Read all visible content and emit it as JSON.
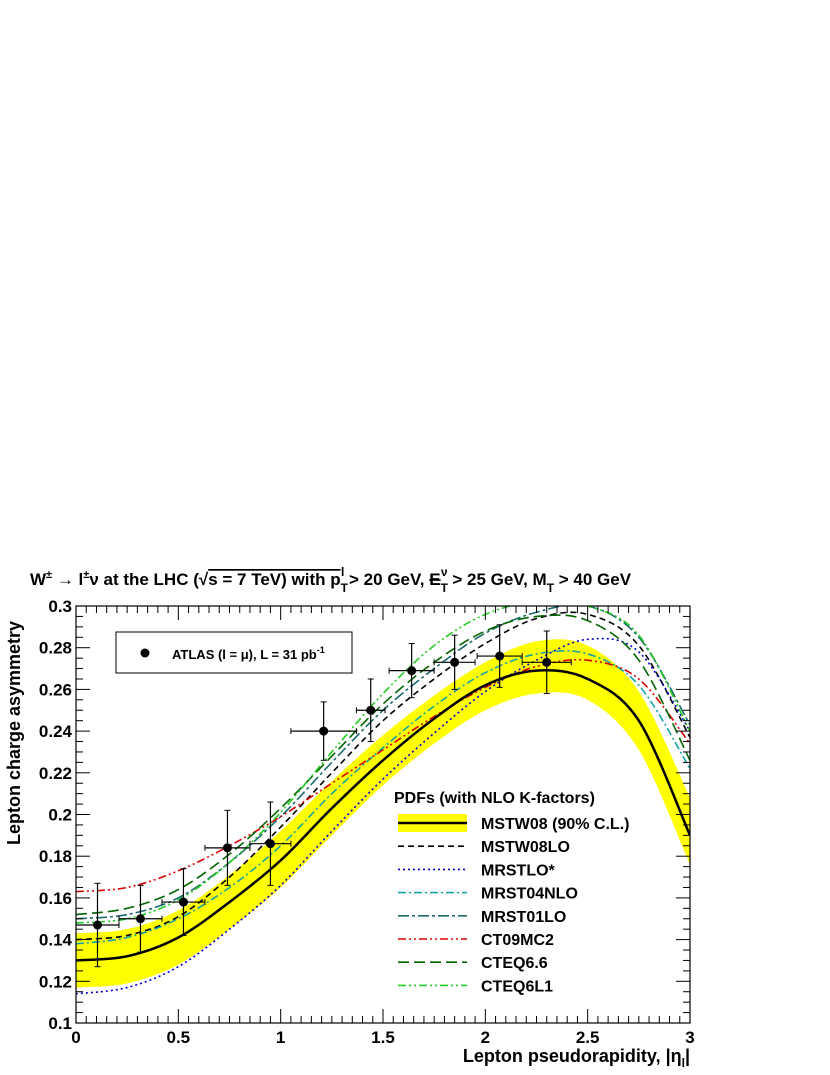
{
  "chart_data": {
    "type": "line",
    "title": {
      "parts": [
        "W",
        "±",
        " → l",
        "±",
        "ν at the LHC (",
        "√",
        "s = 7 TeV) with p",
        "T",
        "l",
        " > 20 GeV, ",
        "E",
        "T",
        "ν",
        " > 25 GeV, M",
        "T",
        " > 40 GeV"
      ]
    },
    "xlabel": {
      "main": "Lepton pseudorapidity, |η",
      "sub": "l",
      "end": "|"
    },
    "ylabel": "Lepton charge asymmetry",
    "xlim": [
      0,
      3
    ],
    "ylim": [
      0.1,
      0.3
    ],
    "xticks": [
      0,
      0.5,
      1,
      1.5,
      2,
      2.5,
      3
    ],
    "xtick_labels": [
      "0",
      "0.5",
      "1",
      "1.5",
      "2",
      "2.5",
      "3"
    ],
    "yticks": [
      0.1,
      0.12,
      0.14,
      0.16,
      0.18,
      0.2,
      0.22,
      0.24,
      0.26,
      0.28,
      0.3
    ],
    "ytick_labels": [
      "0.1",
      "0.12",
      "0.14",
      "0.16",
      "0.18",
      "0.2",
      "0.22",
      "0.24",
      "0.26",
      "0.28",
      "0.3"
    ],
    "grid": false,
    "legend_data": {
      "label": "ATLAS (l = μ), L = 31 pb",
      "sup": "-1",
      "placement": "top-left"
    },
    "legend_pdf": {
      "title": "PDFs (with NLO K-factors)",
      "placement": "bottom-right"
    },
    "data": {
      "name": "ATLAS (l = μ), L = 31 pb-1",
      "points": [
        {
          "x": 0.105,
          "y": 0.147,
          "xerr": 0.105,
          "yerr": 0.02
        },
        {
          "x": 0.315,
          "y": 0.15,
          "xerr": 0.105,
          "yerr": 0.016
        },
        {
          "x": 0.525,
          "y": 0.158,
          "xerr": 0.105,
          "yerr": 0.016
        },
        {
          "x": 0.74,
          "y": 0.184,
          "xerr": 0.11,
          "yerr": 0.018
        },
        {
          "x": 0.95,
          "y": 0.186,
          "xerr": 0.1,
          "yerr": 0.02
        },
        {
          "x": 1.21,
          "y": 0.24,
          "xerr": 0.16,
          "yerr": 0.014
        },
        {
          "x": 1.44,
          "y": 0.25,
          "xerr": 0.07,
          "yerr": 0.015
        },
        {
          "x": 1.64,
          "y": 0.269,
          "xerr": 0.11,
          "yerr": 0.013
        },
        {
          "x": 1.85,
          "y": 0.273,
          "xerr": 0.1,
          "yerr": 0.013
        },
        {
          "x": 2.07,
          "y": 0.276,
          "xerr": 0.11,
          "yerr": 0.015
        },
        {
          "x": 2.3,
          "y": 0.273,
          "xerr": 0.12,
          "yerr": 0.015
        }
      ]
    },
    "x": [
      0,
      0.25,
      0.5,
      0.75,
      1.0,
      1.25,
      1.5,
      1.75,
      2.0,
      2.25,
      2.5,
      2.75,
      3.0
    ],
    "band": {
      "name": "MSTW08 (90% C.L.)",
      "lower": [
        0.117,
        0.119,
        0.128,
        0.145,
        0.165,
        0.19,
        0.214,
        0.234,
        0.25,
        0.258,
        0.255,
        0.231,
        0.176
      ],
      "upper": [
        0.143,
        0.145,
        0.154,
        0.171,
        0.192,
        0.216,
        0.238,
        0.257,
        0.273,
        0.283,
        0.281,
        0.259,
        0.208
      ],
      "color": "#ffff00"
    },
    "series": [
      {
        "name": "MSTW08 (90% C.L.)",
        "color": "#000000",
        "dash": "solid",
        "width": 2.5,
        "values": [
          0.13,
          0.132,
          0.141,
          0.158,
          0.178,
          0.203,
          0.226,
          0.246,
          0.262,
          0.269,
          0.265,
          0.245,
          0.19
        ]
      },
      {
        "name": "MSTW08LO",
        "color": "#000000",
        "dash": "dash",
        "width": 1.6,
        "values": [
          0.14,
          0.142,
          0.151,
          0.17,
          0.194,
          0.22,
          0.245,
          0.265,
          0.282,
          0.294,
          0.296,
          0.281,
          0.237
        ]
      },
      {
        "name": "MRSTLO*",
        "color": "#0000cc",
        "dash": "dot",
        "width": 1.6,
        "values": [
          0.114,
          0.117,
          0.127,
          0.145,
          0.166,
          0.192,
          0.217,
          0.239,
          0.259,
          0.274,
          0.284,
          0.278,
          0.24
        ]
      },
      {
        "name": "MRST04NLO",
        "color": "#17a3a3",
        "dash": "dashdot",
        "width": 1.6,
        "values": [
          0.138,
          0.141,
          0.15,
          0.165,
          0.185,
          0.21,
          0.232,
          0.252,
          0.268,
          0.277,
          0.277,
          0.262,
          0.222
        ]
      },
      {
        "name": "MRST01LO",
        "color": "#1a6b6b",
        "dash": "longdashdot",
        "width": 1.6,
        "values": [
          0.15,
          0.152,
          0.16,
          0.177,
          0.199,
          0.225,
          0.25,
          0.27,
          0.287,
          0.297,
          0.3,
          0.285,
          0.243
        ]
      },
      {
        "name": "CT09MC2",
        "color": "#dd0000",
        "dash": "dashdotdot",
        "width": 1.6,
        "values": [
          0.163,
          0.165,
          0.173,
          0.185,
          0.199,
          0.215,
          0.231,
          0.247,
          0.261,
          0.271,
          0.274,
          0.265,
          0.234
        ]
      },
      {
        "name": "CTEQ6.6",
        "color": "#006600",
        "dash": "longdash",
        "width": 1.6,
        "values": [
          0.152,
          0.155,
          0.164,
          0.181,
          0.203,
          0.228,
          0.253,
          0.273,
          0.288,
          0.295,
          0.293,
          0.274,
          0.226
        ]
      },
      {
        "name": "CTEQ6L1",
        "color": "#22cc22",
        "dash": "dashdotdot",
        "width": 1.6,
        "values": [
          0.148,
          0.15,
          0.159,
          0.177,
          0.201,
          0.23,
          0.258,
          0.281,
          0.296,
          0.302,
          0.3,
          0.286,
          0.24
        ]
      }
    ]
  }
}
